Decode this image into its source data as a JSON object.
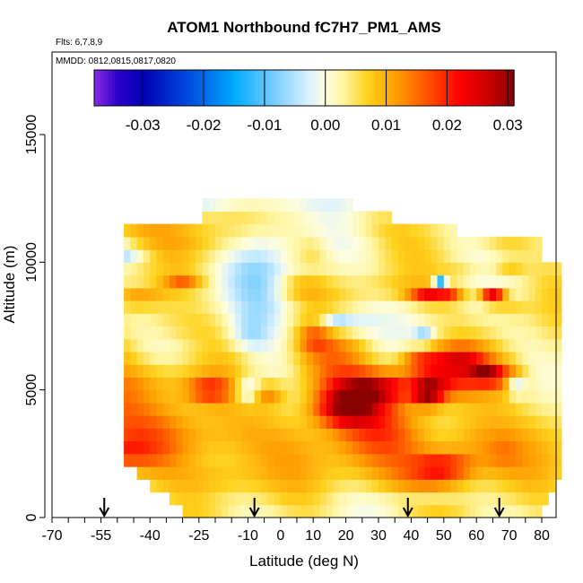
{
  "chart_data": {
    "type": "heatmap",
    "title": "ATOM1 Northbound fC7H7_PM1_AMS",
    "subtitle_flights": "Flts: 6,7,8,9",
    "subtitle_dates": "MMDD: 0812,0815,0817,0820",
    "xlabel": "Latitude (deg N)",
    "ylabel": "Altitude (m)",
    "xlim": [
      -70,
      80
    ],
    "ylim": [
      0,
      17500
    ],
    "x_ticks": [
      -70,
      -55,
      -40,
      -25,
      -10,
      0,
      10,
      20,
      30,
      40,
      50,
      60,
      70,
      80
    ],
    "x_tick_labels": [
      "-70",
      "-55",
      "-40",
      "-25",
      "-10",
      "0",
      "10",
      "20",
      "30",
      "40",
      "50",
      "60",
      "70",
      "80"
    ],
    "y_ticks": [
      0,
      5000,
      10000,
      15000
    ],
    "y_tick_labels": [
      "0",
      "5000",
      "10000",
      "15000"
    ],
    "colorbar": {
      "range": [
        -0.038,
        0.031
      ],
      "ticks": [
        -0.03,
        -0.02,
        -0.01,
        0.0,
        0.01,
        0.02,
        0.03
      ],
      "tick_labels": [
        "-0.03",
        "-0.02",
        "-0.01",
        "0.00",
        "0.01",
        "0.02",
        "0.03"
      ],
      "stops": [
        {
          "v": -0.038,
          "c": "#8a2be2"
        },
        {
          "v": -0.034,
          "c": "#2a00c8"
        },
        {
          "v": -0.03,
          "c": "#0000b4"
        },
        {
          "v": -0.022,
          "c": "#0050e0"
        },
        {
          "v": -0.015,
          "c": "#00aaff"
        },
        {
          "v": -0.008,
          "c": "#7fd0ff"
        },
        {
          "v": -0.003,
          "c": "#d6f0ff"
        },
        {
          "v": 0.0,
          "c": "#fdfde0"
        },
        {
          "v": 0.003,
          "c": "#fff5a0"
        },
        {
          "v": 0.007,
          "c": "#ffd21e"
        },
        {
          "v": 0.012,
          "c": "#ff9900"
        },
        {
          "v": 0.018,
          "c": "#ff4000"
        },
        {
          "v": 0.022,
          "c": "#ff0000"
        },
        {
          "v": 0.027,
          "c": "#c80000"
        },
        {
          "v": 0.031,
          "c": "#8b0000"
        }
      ]
    },
    "profile_arrow_latitudes": [
      -54,
      -8,
      39,
      67
    ],
    "field": {
      "lat_start": -66,
      "lat_step": 2,
      "alt_step": 500,
      "top_altitudes": [
        0,
        0,
        0,
        0,
        0,
        0,
        0,
        0,
        0,
        11500,
        11500,
        11500,
        11500,
        11500,
        11500,
        11500,
        11500,
        11500,
        11500,
        11500,
        11500,
        12500,
        12500,
        12500,
        12500,
        12500,
        12500,
        12500,
        12500,
        12500,
        12500,
        12500,
        12500,
        12500,
        12500,
        12500,
        12500,
        12500,
        12500,
        12500,
        12500,
        12500,
        12500,
        12500,
        12000,
        12000,
        12000,
        12000,
        12000,
        12000,
        11500,
        11500,
        11500,
        11500,
        11500,
        11500,
        11500,
        11500,
        11500,
        11500,
        11000,
        11000,
        11000,
        11000,
        11000,
        11000,
        11000,
        11000,
        11000,
        11000,
        11000,
        11000,
        11000,
        10000,
        10000,
        10000
      ],
      "bottom_altitudes": [
        0,
        0,
        0,
        2500,
        2500,
        2500,
        2500,
        2500,
        2000,
        2000,
        2000,
        1500,
        1500,
        1000,
        1000,
        1000,
        500,
        500,
        0,
        0,
        0,
        0,
        0,
        0,
        0,
        0,
        0,
        0,
        0,
        0,
        0,
        0,
        0,
        0,
        0,
        0,
        0,
        0,
        0,
        0,
        0,
        0,
        0,
        0,
        0,
        0,
        0,
        0,
        0,
        0,
        0,
        0,
        0,
        0,
        0,
        0,
        0,
        0,
        0,
        0,
        0,
        0,
        0,
        0,
        0,
        0,
        0,
        0,
        0,
        0,
        0,
        0,
        0,
        500,
        1000,
        1500
      ],
      "features": [
        {
          "lat": -40,
          "alt": 11500,
          "sx": 40,
          "sy": 400,
          "v": 0.008
        },
        {
          "lat": -55,
          "alt": 11000,
          "sx": 10,
          "sy": 300,
          "v": 0.004
        },
        {
          "lat": -58,
          "alt": 10700,
          "sx": 8,
          "sy": 450,
          "v": -0.012
        },
        {
          "lat": -28,
          "alt": 10600,
          "sx": 20,
          "sy": 350,
          "v": 0.005
        },
        {
          "lat": -48,
          "alt": 10200,
          "sx": 8,
          "sy": 300,
          "v": -0.006
        },
        {
          "lat": -45,
          "alt": 8600,
          "sx": 10,
          "sy": 400,
          "v": 0.01
        },
        {
          "lat": -54,
          "alt": 8500,
          "sx": 6,
          "sy": 450,
          "v": -0.007
        },
        {
          "lat": -58,
          "alt": 9500,
          "sx": 12,
          "sy": 300,
          "v": 0.006
        },
        {
          "lat": -30,
          "alt": 9300,
          "sx": 6,
          "sy": 300,
          "v": 0.009
        },
        {
          "lat": -35,
          "alt": 7500,
          "sx": 15,
          "sy": 700,
          "v": 0.004
        },
        {
          "lat": -55,
          "alt": 6500,
          "sx": 15,
          "sy": 500,
          "v": 0.005
        },
        {
          "lat": -45,
          "alt": 5500,
          "sx": 20,
          "sy": 800,
          "v": 0.006
        },
        {
          "lat": -60,
          "alt": 4500,
          "sx": 15,
          "sy": 1000,
          "v": 0.007
        },
        {
          "lat": -30,
          "alt": 3000,
          "sx": 30,
          "sy": 1200,
          "v": 0.007
        },
        {
          "lat": -55,
          "alt": 2500,
          "sx": 15,
          "sy": 600,
          "v": 0.009
        },
        {
          "lat": -20,
          "alt": 1500,
          "sx": 15,
          "sy": 700,
          "v": 0.005
        },
        {
          "lat": -22,
          "alt": 5000,
          "sx": 7,
          "sy": 500,
          "v": 0.012
        },
        {
          "lat": -10,
          "alt": 5000,
          "sx": 4,
          "sy": 500,
          "v": -0.012
        },
        {
          "lat": -4,
          "alt": 4800,
          "sx": 5,
          "sy": 400,
          "v": 0.008
        },
        {
          "lat": -10,
          "alt": 7200,
          "sx": 6,
          "sy": 700,
          "v": -0.006
        },
        {
          "lat": -6,
          "alt": 9500,
          "sx": 10,
          "sy": 1500,
          "v": -0.003
        },
        {
          "lat": 0,
          "alt": 11500,
          "sx": 10,
          "sy": 800,
          "v": -0.002
        },
        {
          "lat": 5,
          "alt": 9000,
          "sx": 8,
          "sy": 400,
          "v": 0.006
        },
        {
          "lat": 10,
          "alt": 10500,
          "sx": 5,
          "sy": 300,
          "v": 0.006
        },
        {
          "lat": 20,
          "alt": 4300,
          "sx": 10,
          "sy": 700,
          "v": 0.022
        },
        {
          "lat": 28,
          "alt": 5100,
          "sx": 12,
          "sy": 600,
          "v": 0.018
        },
        {
          "lat": 15,
          "alt": 6000,
          "sx": 12,
          "sy": 1300,
          "v": 0.011
        },
        {
          "lat": 10,
          "alt": 7000,
          "sx": 5,
          "sy": 500,
          "v": 0.008
        },
        {
          "lat": 17,
          "alt": 7700,
          "sx": 5,
          "sy": 400,
          "v": -0.012
        },
        {
          "lat": 24,
          "alt": 7600,
          "sx": 6,
          "sy": 500,
          "v": -0.005
        },
        {
          "lat": 30,
          "alt": 3000,
          "sx": 15,
          "sy": 1200,
          "v": 0.008
        },
        {
          "lat": 35,
          "alt": 1500,
          "sx": 20,
          "sy": 800,
          "v": 0.005
        },
        {
          "lat": 36,
          "alt": 9000,
          "sx": 15,
          "sy": 500,
          "v": 0.004
        },
        {
          "lat": 40,
          "alt": 5000,
          "sx": 4,
          "sy": 1000,
          "v": -0.002
        },
        {
          "lat": 45,
          "alt": 4900,
          "sx": 5,
          "sy": 500,
          "v": 0.02
        },
        {
          "lat": 42,
          "alt": 6200,
          "sx": 6,
          "sy": 500,
          "v": 0.01
        },
        {
          "lat": 44,
          "alt": 7100,
          "sx": 3,
          "sy": 300,
          "v": -0.01
        },
        {
          "lat": 45,
          "alt": 8700,
          "sx": 6,
          "sy": 300,
          "v": 0.015
        },
        {
          "lat": 49,
          "alt": 9200,
          "sx": 2,
          "sy": 300,
          "v": -0.02
        },
        {
          "lat": 52,
          "alt": 8700,
          "sx": 5,
          "sy": 300,
          "v": 0.012
        },
        {
          "lat": 50,
          "alt": 5500,
          "sx": 12,
          "sy": 800,
          "v": 0.014
        },
        {
          "lat": 63,
          "alt": 5600,
          "sx": 5,
          "sy": 300,
          "v": 0.02
        },
        {
          "lat": 55,
          "alt": 6300,
          "sx": 10,
          "sy": 500,
          "v": 0.012
        },
        {
          "lat": 50,
          "alt": 2000,
          "sx": 10,
          "sy": 600,
          "v": 0.015
        },
        {
          "lat": 45,
          "alt": 600,
          "sx": 10,
          "sy": 300,
          "v": -0.006
        },
        {
          "lat": 58,
          "alt": 3000,
          "sx": 10,
          "sy": 1000,
          "v": 0.006
        },
        {
          "lat": 65,
          "alt": 8700,
          "sx": 4,
          "sy": 300,
          "v": 0.025
        },
        {
          "lat": 70,
          "alt": 8200,
          "sx": 6,
          "sy": 400,
          "v": 0.005
        },
        {
          "lat": 72,
          "alt": 5100,
          "sx": 3,
          "sy": 300,
          "v": -0.015
        },
        {
          "lat": 70,
          "alt": 5500,
          "sx": 6,
          "sy": 600,
          "v": 0.008
        },
        {
          "lat": 68,
          "alt": 2500,
          "sx": 6,
          "sy": 800,
          "v": 0.004
        },
        {
          "lat": 68,
          "alt": 11000,
          "sx": 8,
          "sy": 600,
          "v": 0.004
        },
        {
          "lat": 70,
          "alt": 9800,
          "sx": 5,
          "sy": 400,
          "v": 0.006
        },
        {
          "lat": 30,
          "alt": 11500,
          "sx": 15,
          "sy": 600,
          "v": 0.002
        },
        {
          "lat": 40,
          "alt": 11700,
          "sx": 5,
          "sy": 300,
          "v": -0.006
        },
        {
          "lat": 57,
          "alt": 9700,
          "sx": 10,
          "sy": 500,
          "v": 0.004
        }
      ]
    }
  }
}
